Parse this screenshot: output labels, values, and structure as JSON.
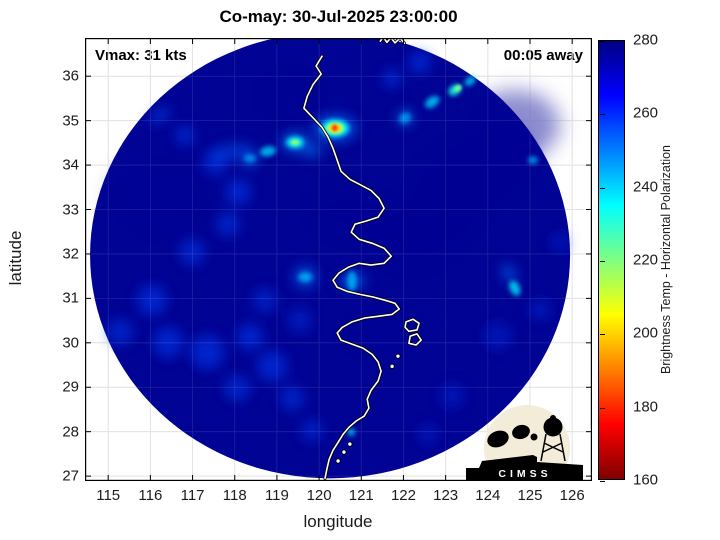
{
  "chart_data": {
    "type": "heatmap",
    "title": "Co-may: 30-Jul-2025 23:00:00",
    "storm_name": "Co-may",
    "valid_time": "30-Jul-2025 23:00:00",
    "annotations": {
      "vmax": "Vmax: 31 kts",
      "timing": "00:05 away"
    },
    "xlabel": "longitude",
    "ylabel": "latitude",
    "xlim": [
      114.45,
      126.47
    ],
    "ylim": [
      26.89,
      36.86
    ],
    "x_ticks": [
      115,
      116,
      117,
      118,
      119,
      120,
      121,
      122,
      123,
      124,
      125,
      126
    ],
    "y_ticks": [
      27,
      28,
      29,
      30,
      31,
      32,
      33,
      34,
      35,
      36
    ],
    "grid": true,
    "colorbar": {
      "label": "Brightness Temp - Horizontal Polarization",
      "min": 160,
      "max": 280,
      "ticks": [
        160,
        180,
        200,
        220,
        240,
        260,
        280
      ],
      "colormap": "jet reversed (low temp = dark red, high temp = dark navy)",
      "stops": [
        [
          160,
          "#7f0000"
        ],
        [
          175,
          "#ff0000"
        ],
        [
          205,
          "#ffff00"
        ],
        [
          235,
          "#00ffff"
        ],
        [
          265,
          "#0000ff"
        ],
        [
          280,
          "#000083"
        ]
      ]
    },
    "swath": {
      "center_lon": 120.26,
      "center_lat": 31.97,
      "rx_deg": 5.69,
      "ry_deg": 5.02,
      "base_tb": 279,
      "base_color": "#000394",
      "background": "#ffffff"
    },
    "features_format": "[lon, lat, brightness_temp_K, rx_px, ry_px, rotate_deg, opacity]",
    "features": [
      [
        123.58,
        33.77,
        278,
        65,
        45,
        -15,
        0.55
      ],
      [
        122.39,
        32.42,
        278,
        55,
        40,
        -20,
        0.5
      ],
      [
        120.62,
        32.98,
        278,
        45,
        35,
        0,
        0.5
      ],
      [
        119.31,
        35.57,
        278,
        40,
        30,
        0,
        0.4
      ],
      [
        124.64,
        34.9,
        278,
        45,
        35,
        0,
        0.45
      ],
      [
        116.23,
        33.21,
        278,
        50,
        45,
        0,
        0.35
      ],
      [
        121.44,
        30.28,
        278,
        50,
        30,
        -10,
        0.35
      ],
      [
        123.3,
        33.3,
        279,
        70,
        5,
        -12,
        0.5
      ],
      [
        123.0,
        32.6,
        279,
        65,
        5,
        -10,
        0.4
      ],
      [
        124.3,
        31.9,
        279,
        55,
        4,
        -15,
        0.35
      ],
      [
        116.23,
        35.12,
        256,
        12,
        6,
        -35,
        0.5
      ],
      [
        116.82,
        34.67,
        257,
        10,
        10,
        0,
        0.45
      ],
      [
        117.54,
        34.06,
        257,
        12,
        12,
        0,
        0.5
      ],
      [
        118.08,
        33.39,
        257,
        13,
        13,
        0,
        0.5
      ],
      [
        117.84,
        32.67,
        257,
        12,
        12,
        0,
        0.45
      ],
      [
        116.99,
        32.04,
        257,
        13,
        13,
        0,
        0.45
      ],
      [
        116.04,
        30.96,
        257,
        15,
        15,
        0,
        0.5
      ],
      [
        115.28,
        30.24,
        257,
        13,
        13,
        0,
        0.45
      ],
      [
        116.42,
        30.01,
        257,
        15,
        15,
        0,
        0.5
      ],
      [
        117.35,
        29.79,
        257,
        17,
        17,
        0,
        0.5
      ],
      [
        118.36,
        30.13,
        257,
        13,
        13,
        0,
        0.5
      ],
      [
        118.89,
        29.47,
        257,
        15,
        15,
        0,
        0.5
      ],
      [
        118.06,
        28.98,
        257,
        13,
        13,
        0,
        0.45
      ],
      [
        119.36,
        28.75,
        257,
        12,
        12,
        0,
        0.45
      ],
      [
        119.83,
        28.03,
        257,
        11,
        11,
        0,
        0.4
      ],
      [
        122.39,
        36.31,
        257,
        11,
        11,
        0,
        0.5
      ],
      [
        121.73,
        35.95,
        257,
        9,
        9,
        0,
        0.5
      ],
      [
        125.24,
        30.74,
        258,
        10,
        10,
        0,
        0.35
      ],
      [
        124.24,
        30.15,
        258,
        14,
        14,
        0,
        0.3
      ],
      [
        125.71,
        32.26,
        258,
        10,
        10,
        0,
        0.3
      ],
      [
        123.15,
        28.8,
        258,
        12,
        12,
        0,
        0.3
      ],
      [
        122.58,
        27.94,
        258,
        10,
        10,
        0,
        0.3
      ],
      [
        118.72,
        30.96,
        257,
        12,
        12,
        0,
        0.4
      ],
      [
        119.55,
        30.51,
        257,
        12,
        12,
        0,
        0.35
      ],
      [
        117.9,
        34.3,
        254,
        20,
        8,
        -10,
        0.45
      ],
      [
        120.38,
        34.83,
        252,
        22,
        14,
        0,
        0.6
      ],
      [
        119.43,
        34.51,
        250,
        14,
        10,
        0,
        0.6
      ],
      [
        118.36,
        34.15,
        252,
        9,
        9,
        0,
        0.55
      ],
      [
        119.67,
        31.48,
        252,
        12,
        12,
        0,
        0.5
      ],
      [
        120.78,
        31.39,
        252,
        14,
        9,
        0,
        0.5
      ],
      [
        124.5,
        31.57,
        252,
        7,
        10,
        -30,
        0.55
      ],
      [
        122.04,
        35.06,
        250,
        8,
        8,
        0,
        0.6
      ],
      [
        119.83,
        34.33,
        250,
        10,
        7,
        0,
        0.55
      ],
      [
        120.38,
        34.83,
        235,
        14,
        9,
        0,
        0.9
      ],
      [
        119.43,
        34.51,
        235,
        9,
        6,
        0,
        0.85
      ],
      [
        118.79,
        34.31,
        240,
        8,
        5,
        -10,
        0.8
      ],
      [
        118.36,
        34.15,
        244,
        6,
        4,
        0,
        0.7
      ],
      [
        122.68,
        35.42,
        240,
        8,
        5,
        -35,
        0.8
      ],
      [
        123.22,
        35.69,
        232,
        7,
        5,
        -35,
        0.85
      ],
      [
        123.58,
        35.89,
        238,
        6,
        4,
        -35,
        0.75
      ],
      [
        125.07,
        34.11,
        242,
        5,
        4,
        0,
        0.7
      ],
      [
        124.64,
        31.23,
        238,
        5,
        8,
        -25,
        0.8
      ],
      [
        119.67,
        31.48,
        242,
        7,
        5,
        0,
        0.75
      ],
      [
        120.78,
        31.39,
        242,
        5,
        10,
        0,
        0.75
      ],
      [
        120.76,
        27.99,
        238,
        4,
        4,
        0,
        0.7
      ],
      [
        122.04,
        35.06,
        244,
        6,
        5,
        -30,
        0.7
      ],
      [
        120.38,
        34.83,
        215,
        9,
        6,
        0,
        0.95
      ],
      [
        120.38,
        34.83,
        198,
        5.5,
        4,
        0,
        0.95
      ],
      [
        120.37,
        34.84,
        182,
        3,
        4,
        0,
        0.95
      ],
      [
        119.43,
        34.51,
        218,
        4.5,
        3,
        0,
        0.9
      ],
      [
        123.29,
        35.73,
        222,
        4,
        3,
        -35,
        0.9
      ]
    ],
    "coastline": {
      "main": [
        [
          120.07,
          36.45
        ],
        [
          119.93,
          36.23
        ],
        [
          120.05,
          36.05
        ],
        [
          119.86,
          35.82
        ],
        [
          119.72,
          35.55
        ],
        [
          119.64,
          35.28
        ],
        [
          119.86,
          35.06
        ],
        [
          120.07,
          34.85
        ],
        [
          120.21,
          34.63
        ],
        [
          120.33,
          34.38
        ],
        [
          120.43,
          34.11
        ],
        [
          120.52,
          33.86
        ],
        [
          120.73,
          33.68
        ],
        [
          120.99,
          33.55
        ],
        [
          121.23,
          33.43
        ],
        [
          121.42,
          33.25
        ],
        [
          121.54,
          33.03
        ],
        [
          121.4,
          32.83
        ],
        [
          121.11,
          32.74
        ],
        [
          120.85,
          32.67
        ],
        [
          120.76,
          32.49
        ],
        [
          120.95,
          32.33
        ],
        [
          121.26,
          32.24
        ],
        [
          121.54,
          32.13
        ],
        [
          121.71,
          31.95
        ],
        [
          121.54,
          31.79
        ],
        [
          121.23,
          31.75
        ],
        [
          120.95,
          31.79
        ],
        [
          120.69,
          31.7
        ],
        [
          120.47,
          31.57
        ],
        [
          120.33,
          31.41
        ],
        [
          120.43,
          31.25
        ],
        [
          120.66,
          31.16
        ],
        [
          120.97,
          31.09
        ],
        [
          121.28,
          31.03
        ],
        [
          121.56,
          30.96
        ],
        [
          121.8,
          30.89
        ],
        [
          121.9,
          30.76
        ],
        [
          121.73,
          30.64
        ],
        [
          121.42,
          30.6
        ],
        [
          121.09,
          30.56
        ],
        [
          120.78,
          30.47
        ],
        [
          120.55,
          30.35
        ],
        [
          120.43,
          30.22
        ],
        [
          120.52,
          30.06
        ],
        [
          120.78,
          29.97
        ],
        [
          121.04,
          29.88
        ],
        [
          121.26,
          29.74
        ],
        [
          121.4,
          29.57
        ],
        [
          121.47,
          29.36
        ],
        [
          121.4,
          29.14
        ],
        [
          121.23,
          28.93
        ],
        [
          121.14,
          28.73
        ],
        [
          121.18,
          28.53
        ],
        [
          121.07,
          28.35
        ],
        [
          120.88,
          28.24
        ],
        [
          120.71,
          28.1
        ],
        [
          120.57,
          27.94
        ],
        [
          120.45,
          27.76
        ],
        [
          120.33,
          27.58
        ],
        [
          120.24,
          27.38
        ],
        [
          120.19,
          27.18
        ],
        [
          120.14,
          26.95
        ]
      ],
      "shandong": [
        [
          121.45,
          36.79
        ],
        [
          121.52,
          36.88
        ],
        [
          121.61,
          36.76
        ],
        [
          121.7,
          36.87
        ],
        [
          121.8,
          36.75
        ],
        [
          121.92,
          36.86
        ],
        [
          122.02,
          36.74
        ]
      ],
      "islands": [
        [
          [
            122.06,
            30.47
          ],
          [
            122.23,
            30.53
          ],
          [
            122.37,
            30.44
          ],
          [
            122.32,
            30.29
          ],
          [
            122.13,
            30.26
          ],
          [
            122.04,
            30.35
          ]
        ],
        [
          [
            122.16,
            30.15
          ],
          [
            122.32,
            30.2
          ],
          [
            122.42,
            30.06
          ],
          [
            122.3,
            29.95
          ],
          [
            122.13,
            29.99
          ]
        ]
      ],
      "islets": [
        [
          120.59,
          27.54
        ],
        [
          120.73,
          27.72
        ],
        [
          120.45,
          27.34
        ],
        [
          121.87,
          29.7
        ],
        [
          121.73,
          29.47
        ]
      ]
    },
    "logo": {
      "text": "CIMSS"
    }
  }
}
